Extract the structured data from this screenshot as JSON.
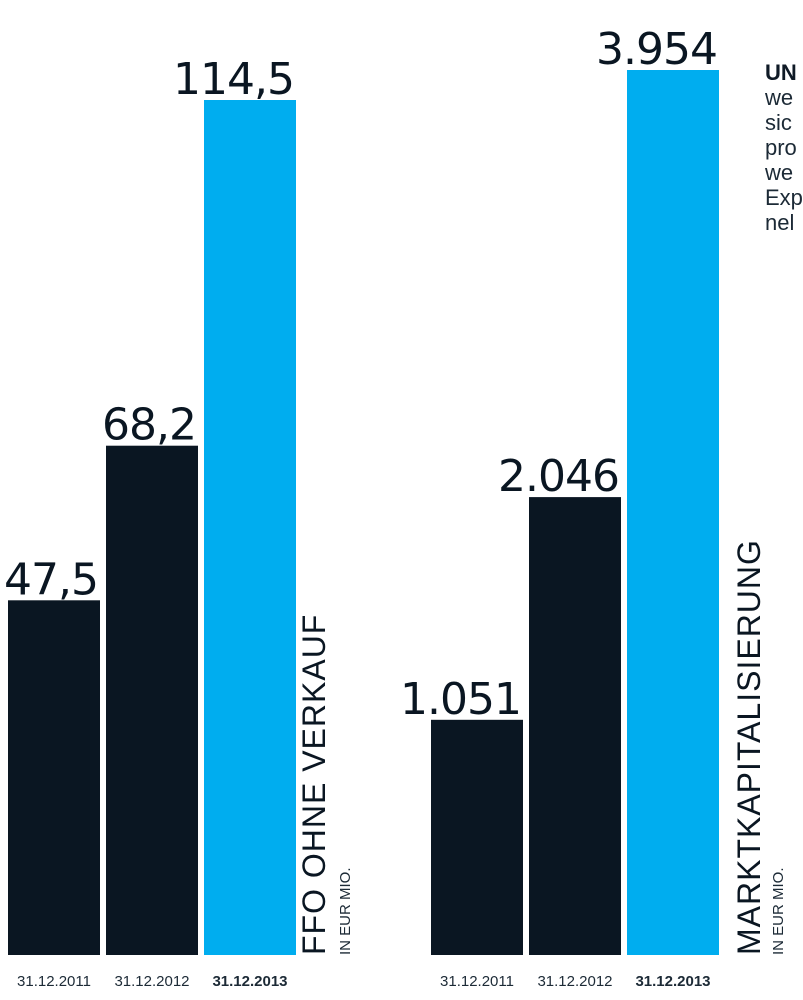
{
  "colors": {
    "dark": "#0a1622",
    "highlight": "#00adef",
    "label": "#0a1622"
  },
  "chart_data": [
    {
      "type": "bar",
      "title": "FFO OHNE VERKAUF",
      "unit": "IN EUR MIO.",
      "categories": [
        "31.12.2011",
        "31.12.2012",
        "31.12.2013"
      ],
      "values": [
        47.5,
        68.2,
        114.5
      ],
      "value_labels": [
        "47,5",
        "68,2",
        "114,5"
      ],
      "highlight_index": 2
    },
    {
      "type": "bar",
      "title": "MARKTKAPITALISIERUNG",
      "unit": "IN EUR MIO.",
      "categories": [
        "31.12.2011",
        "31.12.2012",
        "31.12.2013"
      ],
      "values": [
        1051,
        2046,
        3954
      ],
      "value_labels": [
        "1.051",
        "2.046",
        "3.954"
      ],
      "highlight_index": 2
    }
  ],
  "side_text": {
    "heading": "UN",
    "lines": [
      "we",
      "sic",
      "pro",
      "we",
      "Exp",
      "nel"
    ]
  }
}
